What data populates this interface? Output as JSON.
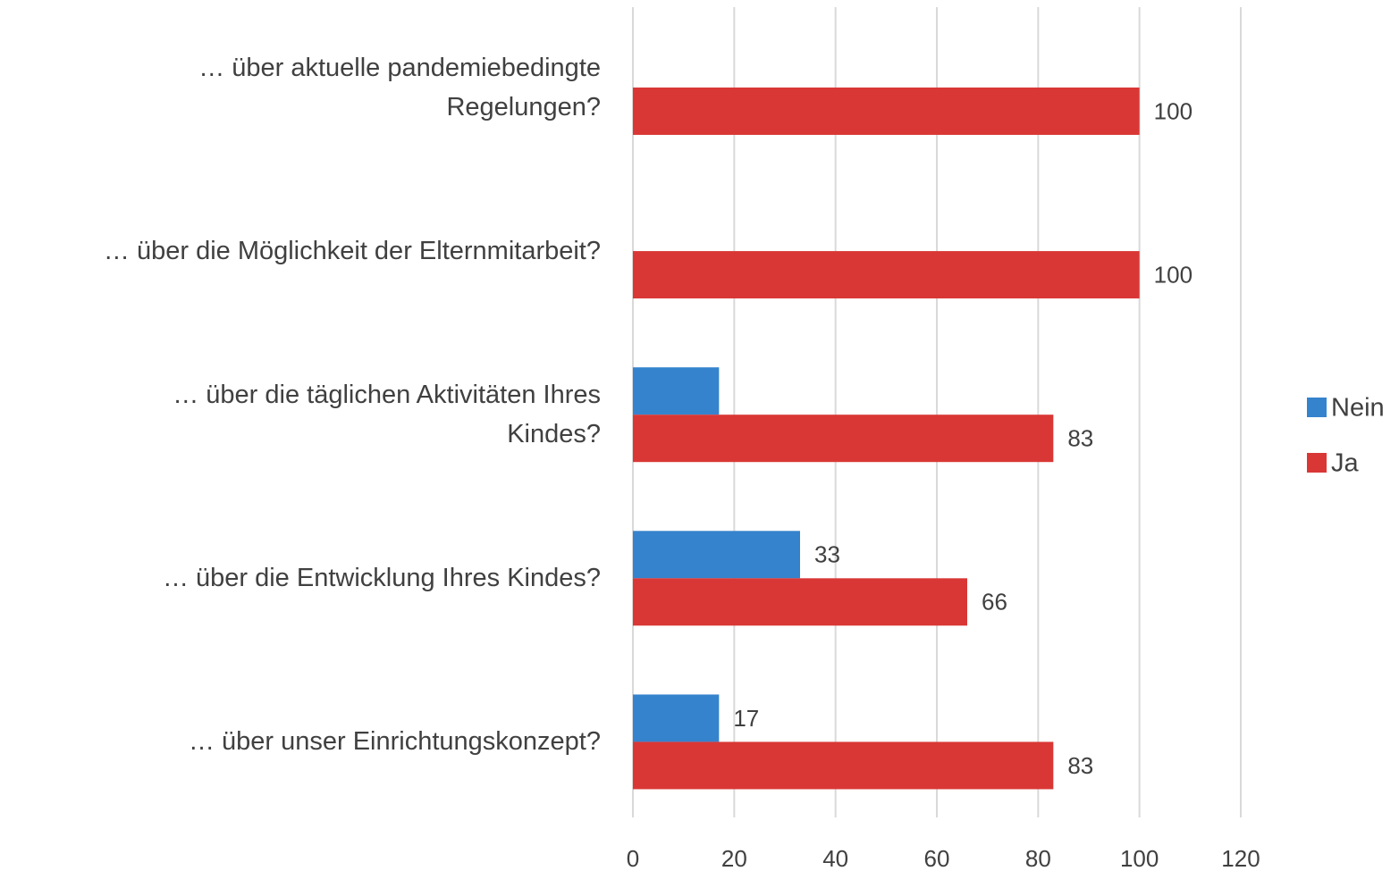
{
  "chart_data": {
    "type": "bar",
    "orientation": "horizontal",
    "categories": [
      "… über aktuelle pandemiebedingte\nRegelungen?",
      "… über die Möglichkeit der Elternmitarbeit?",
      "… über die täglichen Aktivitäten Ihres\nKindes?",
      "… über die Entwicklung Ihres Kindes?",
      "… über unser Einrichtungskonzept?"
    ],
    "series": [
      {
        "name": "Nein",
        "color": "#3583cd",
        "values": [
          null,
          null,
          17,
          33,
          17
        ],
        "value_labels": [
          null,
          null,
          null,
          "33",
          "17"
        ]
      },
      {
        "name": "Ja",
        "color": "#d93735",
        "values": [
          100,
          100,
          83,
          66,
          83
        ],
        "value_labels": [
          "100",
          "100",
          "83",
          "66",
          "83"
        ]
      }
    ],
    "xlim": [
      0,
      120
    ],
    "xticks": [
      0,
      20,
      40,
      60,
      80,
      100,
      120
    ],
    "grid": true,
    "legend": "right"
  }
}
